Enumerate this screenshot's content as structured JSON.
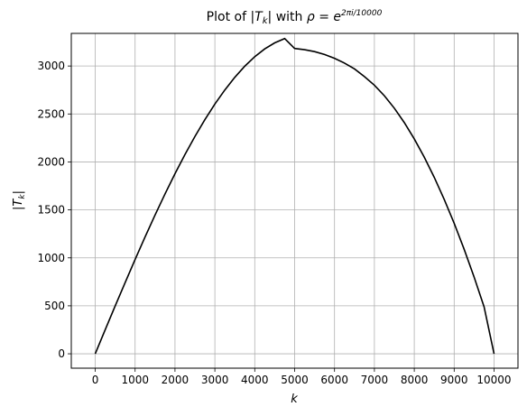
{
  "chart_data": {
    "type": "line",
    "title_prefix": "Plot of |",
    "title_T": "T",
    "title_k": "k",
    "title_mid": "| with ",
    "title_rho": "ρ = e",
    "title_exp": "2πi/10000",
    "xlabel": "k",
    "ylabel_T": "|T",
    "ylabel_k": "k",
    "ylabel_close": "|",
    "xlim": [
      -600,
      10600
    ],
    "ylim": [
      -150,
      3340
    ],
    "xticks": [
      0,
      1000,
      2000,
      3000,
      4000,
      5000,
      6000,
      7000,
      8000,
      9000,
      10000
    ],
    "yticks": [
      0,
      500,
      1000,
      1500,
      2000,
      2500,
      3000
    ],
    "grid": true,
    "series": [
      {
        "color": "#000000",
        "x": [
          0,
          250,
          500,
          750,
          1000,
          1250,
          1500,
          1750,
          2000,
          2250,
          2500,
          2750,
          3000,
          3250,
          3500,
          3750,
          4000,
          4250,
          4500,
          4750,
          5000,
          5250,
          5500,
          5750,
          6000,
          6250,
          6500,
          6750,
          7000,
          7250,
          7500,
          7750,
          8000,
          8250,
          8500,
          8750,
          9000,
          9250,
          9500,
          9750,
          10000
        ],
        "y": [
          0,
          250,
          498,
          742,
          983,
          1218,
          1446,
          1666,
          1877,
          2077,
          2265,
          2441,
          2603,
          2750,
          2882,
          2998,
          3097,
          3178,
          3241,
          3286,
          3183,
          3170,
          3150,
          3120,
          3080,
          3030,
          2970,
          2890,
          2800,
          2690,
          2560,
          2410,
          2240,
          2050,
          1840,
          1610,
          1360,
          1090,
          800,
          490,
          0
        ]
      }
    ]
  }
}
